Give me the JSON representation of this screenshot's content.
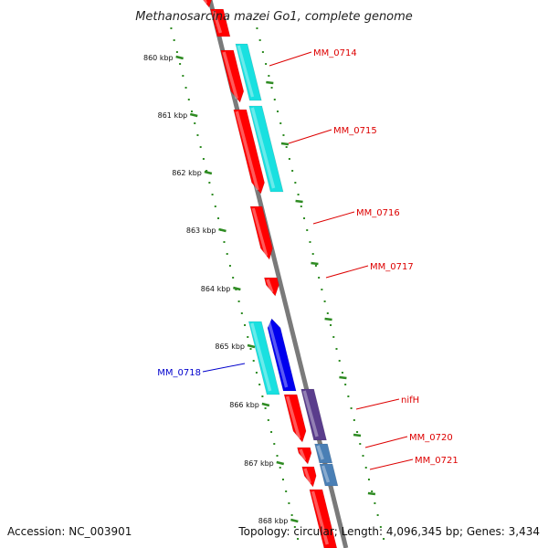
{
  "title": "Methanosarcina mazei Go1, complete genome",
  "colors": {
    "backbone": "#7a7a7a",
    "tick": "#2e8b22",
    "red": "#ff0000",
    "cyan": "#19e0e0",
    "blue": "#0000ee",
    "purple": "#5a3d8c",
    "steel": "#4a7fb5",
    "label_red": "#dd0000",
    "label_blue": "#0000cc"
  },
  "ticks": [
    {
      "label": "860 kbp"
    },
    {
      "label": "861 kbp"
    },
    {
      "label": "862 kbp"
    },
    {
      "label": "863 kbp"
    },
    {
      "label": "864 kbp"
    },
    {
      "label": "865 kbp"
    },
    {
      "label": "866 kbp"
    },
    {
      "label": "867 kbp"
    },
    {
      "label": "868 kbp"
    }
  ],
  "genes": [
    {
      "label": "MM_0714",
      "color": "red"
    },
    {
      "label": "MM_0715",
      "color": "red"
    },
    {
      "label": "MM_0716",
      "color": "red"
    },
    {
      "label": "MM_0717",
      "color": "red"
    },
    {
      "label": "MM_0718",
      "color": "blue"
    },
    {
      "label": "nifH",
      "color": "red"
    },
    {
      "label": "MM_0720",
      "color": "red"
    },
    {
      "label": "MM_0721",
      "color": "red"
    }
  ],
  "footer": {
    "accession": "Accession: NC_003901",
    "topology": "Topology: circular; Length: 4,096,345 bp; Genes: 3,434"
  }
}
